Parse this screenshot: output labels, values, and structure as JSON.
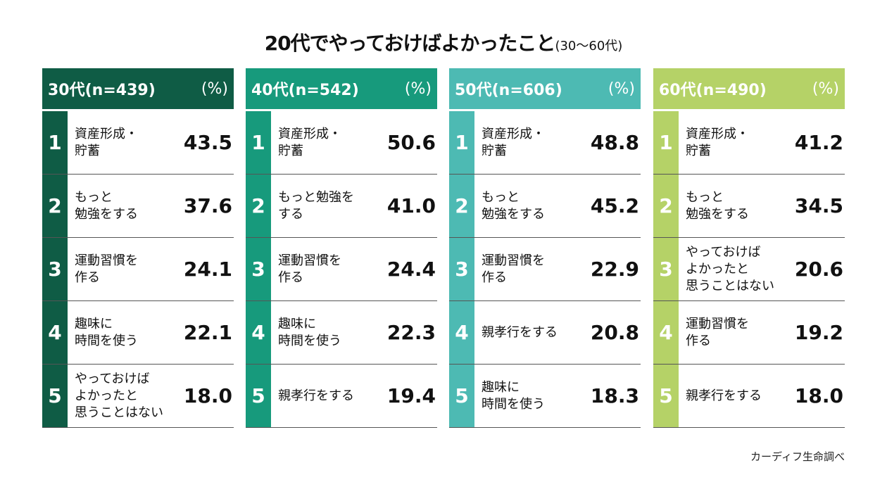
{
  "title": "20代でやっておけばよかったこと",
  "subtitle": "(30〜60代)",
  "source": "カーディフ生命調べ",
  "chart_data": {
    "type": "table",
    "unit": "(%)",
    "tables": [
      {
        "header": "30代(n=439)",
        "color": "#0f5c45",
        "rows": [
          {
            "rank": "1",
            "label": "資産形成・\n貯蓄",
            "value": "43.5"
          },
          {
            "rank": "2",
            "label": "もっと\n勉強をする",
            "value": "37.6"
          },
          {
            "rank": "3",
            "label": "運動習慣を\n作る",
            "value": "24.1"
          },
          {
            "rank": "4",
            "label": "趣味に\n時間を使う",
            "value": "22.1"
          },
          {
            "rank": "5",
            "label": "やっておけば\nよかったと\n思うことはない",
            "value": "18.0"
          }
        ]
      },
      {
        "header": "40代(n=542)",
        "color": "#179a7c",
        "rows": [
          {
            "rank": "1",
            "label": "資産形成・\n貯蓄",
            "value": "50.6"
          },
          {
            "rank": "2",
            "label": "もっと勉強を\nする",
            "value": "41.0"
          },
          {
            "rank": "3",
            "label": "運動習慣を\n作る",
            "value": "24.4"
          },
          {
            "rank": "4",
            "label": "趣味に\n時間を使う",
            "value": "22.3"
          },
          {
            "rank": "5",
            "label": "親孝行をする",
            "value": "19.4"
          }
        ]
      },
      {
        "header": "50代(n=606)",
        "color": "#4dbab3",
        "rows": [
          {
            "rank": "1",
            "label": "資産形成・\n貯蓄",
            "value": "48.8"
          },
          {
            "rank": "2",
            "label": "もっと\n勉強をする",
            "value": "45.2"
          },
          {
            "rank": "3",
            "label": "運動習慣を\n作る",
            "value": "22.9"
          },
          {
            "rank": "4",
            "label": "親孝行をする",
            "value": "20.8"
          },
          {
            "rank": "5",
            "label": "趣味に\n時間を使う",
            "value": "18.3"
          }
        ]
      },
      {
        "header": "60代(n=490)",
        "color": "#b5d267",
        "rows": [
          {
            "rank": "1",
            "label": "資産形成・\n貯蓄",
            "value": "41.2"
          },
          {
            "rank": "2",
            "label": "もっと\n勉強をする",
            "value": "34.5"
          },
          {
            "rank": "3",
            "label": "やっておけば\nよかったと\n思うことはない",
            "value": "20.6"
          },
          {
            "rank": "4",
            "label": "運動習慣を\n作る",
            "value": "19.2"
          },
          {
            "rank": "5",
            "label": "親孝行をする",
            "value": "18.0"
          }
        ]
      }
    ]
  }
}
